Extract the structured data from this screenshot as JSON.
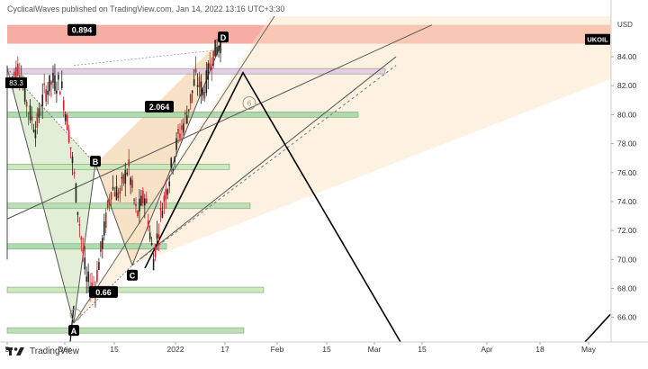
{
  "publish_header": {
    "text": "CyclicalWaves published on TradingView.com, Jan 14, 2022 13:16 UTC+3:30"
  },
  "brand": {
    "logo_icon": "tradingview-logo-icon",
    "name": "TradingView"
  },
  "chart_data": {
    "type": "candlestick",
    "symbol": "UKOIL",
    "currency": "USD",
    "ylim": [
      64.3,
      86.8
    ],
    "y_ticks": [
      "84.00",
      "82.00",
      "80.00",
      "78.00",
      "76.00",
      "74.00",
      "72.00",
      "70.00",
      "68.00",
      "66.00"
    ],
    "x_ticks": [
      "5",
      "Dec",
      "15",
      "2022",
      "17",
      "Feb",
      "15",
      "Mar",
      "15",
      "Apr",
      "18",
      "May"
    ],
    "price_path": [
      [
        "5",
        82.4
      ],
      [
        "7",
        83.4
      ],
      [
        "9",
        80.5
      ],
      [
        "11",
        79.0
      ],
      [
        "13",
        81.5
      ],
      [
        "15",
        82.3
      ],
      [
        "17",
        82.1
      ],
      [
        "19",
        78.5
      ],
      [
        "21",
        73.5
      ],
      [
        "23",
        68.5
      ],
      [
        "Dec",
        68.0
      ],
      [
        "Dec 2",
        71.5
      ],
      [
        "Dec 6",
        75.0
      ],
      [
        "Dec 9",
        74.5
      ],
      [
        "Dec 10",
        76.5
      ],
      [
        "Dec 14",
        73.0
      ],
      [
        "Dec 16",
        74.5
      ],
      [
        "Dec 20",
        70.0
      ],
      [
        "Dec 22",
        73.5
      ],
      [
        "Dec 24",
        76.0
      ],
      [
        "2022",
        78.5
      ],
      [
        "Jan 5",
        80.0
      ],
      [
        "Jan 7",
        82.5
      ],
      [
        "Jan 10",
        81.5
      ],
      [
        "Jan 12",
        84.0
      ],
      [
        "Jan 13",
        85.0
      ]
    ],
    "pattern_points": [
      {
        "label": "A",
        "price": 65.6
      },
      {
        "label": "B",
        "price": 76.6
      },
      {
        "label": "C",
        "price": 69.6
      },
      {
        "label": "D",
        "price": 85.3
      }
    ],
    "ratio_labels": [
      "0.894",
      "2.064",
      "0.66"
    ],
    "price_label": "83.3",
    "projection_point": "6",
    "horizontal_zones": [
      {
        "price": 83.0,
        "color": "#e8c8e8"
      },
      {
        "price": 80.0,
        "color": "#a8d8a8"
      },
      {
        "price": 76.4,
        "color": "#c8e8b8"
      },
      {
        "price": 73.7,
        "color": "#b8dcb0"
      },
      {
        "price": 70.9,
        "color": "#a8d8a8"
      },
      {
        "price": 67.9,
        "color": "#c8e8b8"
      },
      {
        "price": 65.1,
        "color": "#b8dcb0"
      }
    ],
    "top_zone": {
      "from": 86.2,
      "to": 84.9,
      "color": "#f5a49a"
    },
    "colors": {
      "up": "#222222",
      "down": "#d0202a",
      "background": "#fff5e6"
    }
  }
}
